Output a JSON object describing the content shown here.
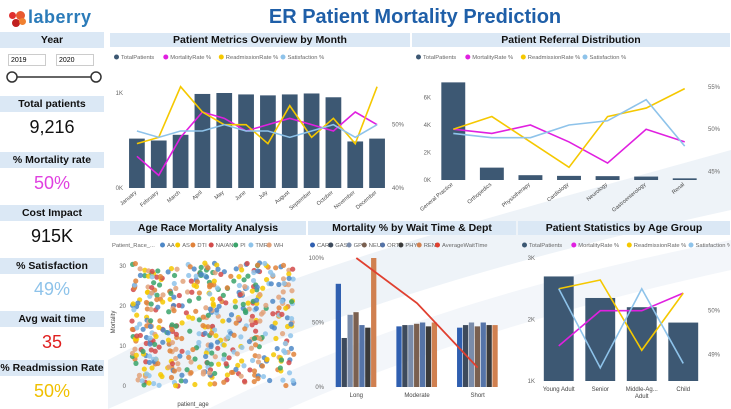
{
  "header": {
    "logo_text": "laberry",
    "title": "ER Patient Mortality Prediction"
  },
  "year_filter": {
    "label": "Year",
    "start": "2019",
    "end": "2020",
    "slider_start_fraction": 0.0,
    "slider_end_fraction": 1.0
  },
  "kpis": [
    {
      "label": "Total patients",
      "value": "9,216",
      "color": "#111111"
    },
    {
      "label": "% Mortality rate",
      "value": "50%",
      "color": "#e040e0"
    },
    {
      "label": "Cost Impact",
      "value": "915K",
      "color": "#111111"
    },
    {
      "label": "% Satisfaction",
      "value": "49%",
      "color": "#8ec3ea"
    },
    {
      "label": "Avg wait time",
      "value": "35",
      "color": "#e02020"
    },
    {
      "label": "% Readmission Rate",
      "value": "50%",
      "color": "#f0c000"
    }
  ],
  "colors": {
    "bar": "#3d5873",
    "mortality": "#e020e0",
    "readmission": "#f5c800",
    "satisfaction": "#8ec3ea",
    "panel_bg": "#dbe8f5",
    "title": "#1f5fa8"
  },
  "panels": {
    "monthly": {
      "title": "Patient Metrics Overview by Month"
    },
    "referral": {
      "title": "Patient Referral Distribution"
    },
    "age_race": {
      "title": "Age Race Mortality Analysis"
    },
    "wait": {
      "title": "Mortality % by Wait Time & Dept"
    },
    "age_group": {
      "title": "Patient Statistics by Age Group"
    }
  },
  "chart_data": [
    {
      "type": "bar",
      "id": "monthly",
      "categories": [
        "January",
        "February",
        "March",
        "April",
        "May",
        "June",
        "July",
        "August",
        "September",
        "October",
        "November",
        "December"
      ],
      "series": [
        {
          "name": "TotalPatients",
          "values": [
            520,
            500,
            560,
            990,
            1000,
            985,
            975,
            985,
            995,
            955,
            490,
            520
          ]
        },
        {
          "name": "MortalityRate %",
          "values": [
            45,
            42,
            48,
            52,
            51,
            49,
            50,
            51,
            50,
            49,
            52,
            50
          ]
        },
        {
          "name": "ReadmissionRate %",
          "values": [
            47,
            48,
            56,
            52,
            50,
            50,
            47,
            53,
            48,
            51,
            47,
            56
          ]
        },
        {
          "name": "Satisfaction %",
          "values": [
            49,
            48,
            49,
            49,
            50,
            49,
            49,
            48,
            49,
            50,
            48,
            50
          ]
        }
      ],
      "y_ticks": [
        "0K",
        "1K"
      ],
      "y2_ticks": [
        "40%",
        "50%"
      ],
      "ylim": [
        0,
        1200
      ],
      "y2lim": [
        40,
        58
      ]
    },
    {
      "type": "bar",
      "id": "referral",
      "categories": [
        "General Practice",
        "Orthopedics",
        "Physiotherapy",
        "Cardiology",
        "Neurology",
        "Gastroenterology",
        "Renal"
      ],
      "series": [
        {
          "name": "TotalPatients",
          "values": [
            7100,
            900,
            350,
            300,
            280,
            250,
            120
          ]
        },
        {
          "name": "MortalityRate %",
          "values": [
            50,
            49.5,
            50.5,
            48.5,
            46,
            50,
            48.5
          ]
        },
        {
          "name": "ReadmissionRate %",
          "values": [
            50,
            51.5,
            48.5,
            45.5,
            51.5,
            52.5,
            54.8
          ]
        },
        {
          "name": "Satisfaction %",
          "values": [
            49.5,
            49,
            49,
            50.5,
            51,
            53.5,
            48
          ]
        }
      ],
      "y_ticks": [
        "0K",
        "2K",
        "4K",
        "6K"
      ],
      "y2_ticks": [
        "45%",
        "50%",
        "55%"
      ],
      "ylim": [
        0,
        8000
      ],
      "y2lim": [
        44,
        57
      ]
    },
    {
      "type": "scatter",
      "id": "age_race",
      "xlabel": "patient_age",
      "ylabel": "Mortality",
      "legend_title": "Patient_Race_...",
      "series": [
        {
          "name": "AA",
          "color": "#4e88c7"
        },
        {
          "name": "AS",
          "color": "#f5c800"
        },
        {
          "name": "DTI",
          "color": "#e0823a"
        },
        {
          "name": "NA/AN",
          "color": "#d24a4a"
        },
        {
          "name": "PI",
          "color": "#3aa36a"
        },
        {
          "name": "TMR",
          "color": "#8ec3ea"
        },
        {
          "name": "WH",
          "color": "#e2a27a"
        }
      ],
      "y_ticks": [
        "0",
        "10",
        "20",
        "30"
      ],
      "ylim": [
        0,
        32
      ]
    },
    {
      "type": "bar",
      "id": "wait",
      "categories": [
        "Long",
        "Moderate",
        "Short"
      ],
      "series": [
        {
          "name": "CAR",
          "color": "#2f5fb0",
          "values": [
            80,
            47,
            46
          ]
        },
        {
          "name": "GAS",
          "color": "#3d4a5c",
          "values": [
            38,
            48,
            48
          ]
        },
        {
          "name": "GP",
          "color": "#7a8caa",
          "values": [
            56,
            48,
            50
          ]
        },
        {
          "name": "NEU",
          "color": "#7a6050",
          "values": [
            58,
            49,
            47
          ]
        },
        {
          "name": "ORT",
          "color": "#5574a8",
          "values": [
            48,
            50,
            50
          ]
        },
        {
          "name": "PHY",
          "color": "#3a3a3a",
          "values": [
            46,
            47,
            48
          ]
        },
        {
          "name": "REN",
          "color": "#d08050",
          "values": [
            100,
            50,
            48
          ]
        },
        {
          "name": "AverageWaitTime",
          "color": "#e04030",
          "values": [
            100,
            65,
            15
          ]
        }
      ],
      "y_ticks": [
        "0%",
        "50%",
        "100%"
      ],
      "ylim": [
        0,
        100
      ]
    },
    {
      "type": "bar",
      "id": "age_group",
      "categories": [
        "Young Adult",
        "Senior",
        "Middle-Ag... Adult",
        "Child"
      ],
      "series": [
        {
          "name": "TotalPatients",
          "values": [
            2700,
            2350,
            2200,
            1950
          ]
        },
        {
          "name": "MortalityRate %",
          "values": [
            49.2,
            50.0,
            50.0,
            50.4
          ]
        },
        {
          "name": "ReadmissionRate %",
          "values": [
            50.5,
            50.7,
            49.1,
            50.4
          ]
        },
        {
          "name": "Satisfaction %",
          "values": [
            50.5,
            48.7,
            50.5,
            48.8
          ]
        }
      ],
      "y_ticks": [
        "1K",
        "2K",
        "3K"
      ],
      "y2_ticks": [
        "49%",
        "50%"
      ],
      "ylim": [
        1000,
        3000
      ],
      "y2lim": [
        48.4,
        51.2
      ]
    }
  ]
}
